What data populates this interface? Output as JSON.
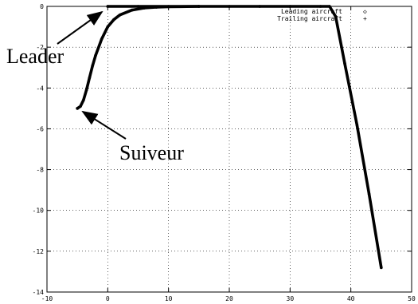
{
  "chart_data": {
    "type": "scatter",
    "title": "",
    "xlabel": "",
    "ylabel": "",
    "xlim": [
      -10,
      50
    ],
    "ylim": [
      -14,
      0
    ],
    "x_ticks": [
      -10,
      0,
      10,
      20,
      30,
      40,
      50
    ],
    "y_ticks": [
      0,
      -2,
      -4,
      -6,
      -8,
      -10,
      -12,
      -14
    ],
    "x_tick_labels": [
      "-10",
      "0",
      "10",
      "20",
      "30",
      "40",
      "50"
    ],
    "y_tick_labels": [
      "0",
      "-2",
      "-4",
      "-6",
      "-8",
      "-10",
      "-12",
      "-14"
    ],
    "grid": true,
    "legend_position": "top-right",
    "series": [
      {
        "name": "Leading aircraft",
        "marker": "◇",
        "x": [
          0,
          5,
          10,
          15,
          20,
          25,
          30,
          35,
          36.5,
          37.5,
          39,
          41,
          43,
          45
        ],
        "y": [
          0,
          0,
          0,
          0,
          0,
          0,
          0,
          0,
          0,
          -0.5,
          -2.8,
          -5.8,
          -9.2,
          -12.8
        ]
      },
      {
        "name": "Trailing aircraft",
        "marker": "+",
        "x": [
          -5,
          -4.5,
          -4,
          -3.5,
          -3,
          -2.5,
          -2,
          -1,
          0,
          1,
          2,
          4,
          6,
          8,
          10,
          12,
          15
        ],
        "y": [
          -5,
          -4.9,
          -4.6,
          -4.1,
          -3.5,
          -2.9,
          -2.4,
          -1.6,
          -1.0,
          -0.65,
          -0.42,
          -0.18,
          -0.08,
          -0.04,
          -0.02,
          -0.01,
          0
        ]
      }
    ],
    "annotations": [
      {
        "text": "Leader",
        "target": [
          0,
          0
        ]
      },
      {
        "text": "Suiveur",
        "target": [
          -5,
          -5
        ]
      }
    ]
  },
  "colors": {
    "plot": "#000000",
    "background": "#ffffff"
  }
}
